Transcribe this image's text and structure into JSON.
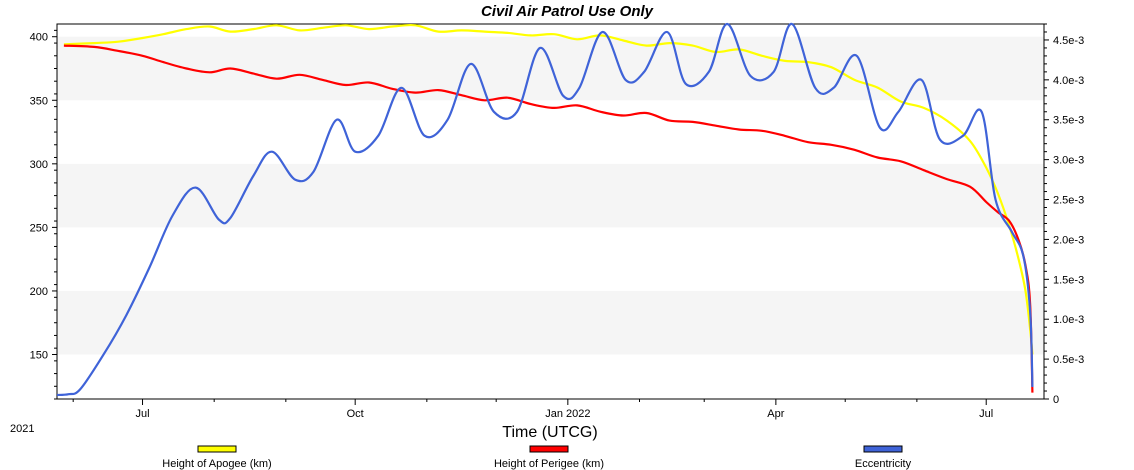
{
  "chart_data": {
    "type": "line",
    "title": "Civil Air Patrol Use Only",
    "xlabel": "Time (UTCG)",
    "year_label": "2021",
    "x_ticks": [
      "Jul",
      "Oct",
      "Jan 2022",
      "Apr",
      "Jul"
    ],
    "x_tick_dates": [
      "2021-07-01",
      "2021-10-01",
      "2022-01-01",
      "2022-04-01",
      "2022-07-01"
    ],
    "xlim": [
      "2021-05-25",
      "2022-07-26"
    ],
    "y_left": {
      "ticks": [
        "150",
        "200",
        "250",
        "300",
        "350",
        "400"
      ],
      "ylim": [
        115,
        410
      ]
    },
    "y_right": {
      "ticks": [
        "0",
        "0.5e-3",
        "1.0e-3",
        "1.5e-3",
        "2.0e-3",
        "2.5e-3",
        "3.0e-3",
        "3.5e-3",
        "4.0e-3",
        "4.5e-3"
      ],
      "ylim": [
        0,
        0.0047
      ]
    },
    "grid": "alternating horizontal bands",
    "legend_position": "bottom",
    "series": [
      {
        "name": "Height of Apogee (km)",
        "axis": "left",
        "color": "#ffff00",
        "x": [
          "2021-05-28",
          "2021-06-10",
          "2021-06-20",
          "2021-07-01",
          "2021-07-10",
          "2021-07-20",
          "2021-07-30",
          "2021-08-08",
          "2021-08-18",
          "2021-08-28",
          "2021-09-07",
          "2021-09-17",
          "2021-09-27",
          "2021-10-07",
          "2021-10-17",
          "2021-10-27",
          "2021-11-06",
          "2021-11-16",
          "2021-11-26",
          "2021-12-06",
          "2021-12-16",
          "2021-12-26",
          "2022-01-05",
          "2022-01-15",
          "2022-01-25",
          "2022-02-04",
          "2022-02-14",
          "2022-02-24",
          "2022-03-06",
          "2022-03-16",
          "2022-03-26",
          "2022-04-05",
          "2022-04-15",
          "2022-04-25",
          "2022-05-05",
          "2022-05-15",
          "2022-05-25",
          "2022-06-04",
          "2022-06-14",
          "2022-06-24",
          "2022-07-01",
          "2022-07-06",
          "2022-07-11",
          "2022-07-15",
          "2022-07-18",
          "2022-07-20",
          "2022-07-21"
        ],
        "values": [
          394,
          395,
          396,
          399,
          402,
          406,
          408,
          404,
          406,
          409,
          405,
          407,
          409,
          406,
          408,
          409,
          404,
          405,
          404,
          403,
          401,
          402,
          398,
          401,
          397,
          393,
          395,
          393,
          388,
          390,
          385,
          381,
          380,
          376,
          366,
          360,
          349,
          344,
          334,
          318,
          297,
          277,
          251,
          225,
          200,
          170,
          150
        ]
      },
      {
        "name": "Height of Perigee (km)",
        "axis": "left",
        "color": "#ff0000",
        "x": [
          "2021-05-28",
          "2021-06-10",
          "2021-06-20",
          "2021-07-01",
          "2021-07-10",
          "2021-07-20",
          "2021-07-30",
          "2021-08-08",
          "2021-08-18",
          "2021-08-28",
          "2021-09-07",
          "2021-09-17",
          "2021-09-27",
          "2021-10-07",
          "2021-10-17",
          "2021-10-27",
          "2021-11-06",
          "2021-11-16",
          "2021-11-26",
          "2021-12-06",
          "2021-12-16",
          "2021-12-26",
          "2022-01-05",
          "2022-01-15",
          "2022-01-25",
          "2022-02-04",
          "2022-02-14",
          "2022-02-24",
          "2022-03-06",
          "2022-03-16",
          "2022-03-26",
          "2022-04-05",
          "2022-04-15",
          "2022-04-25",
          "2022-05-05",
          "2022-05-15",
          "2022-05-25",
          "2022-06-04",
          "2022-06-14",
          "2022-06-24",
          "2022-07-01",
          "2022-07-06",
          "2022-07-11",
          "2022-07-15",
          "2022-07-18",
          "2022-07-20",
          "2022-07-21"
        ],
        "values": [
          393,
          392,
          389,
          385,
          380,
          375,
          372,
          375,
          371,
          367,
          370,
          366,
          362,
          364,
          359,
          356,
          358,
          354,
          350,
          352,
          347,
          344,
          346,
          341,
          338,
          340,
          334,
          333,
          330,
          327,
          326,
          322,
          317,
          315,
          311,
          305,
          302,
          295,
          288,
          282,
          270,
          262,
          255,
          240,
          220,
          190,
          120
        ]
      },
      {
        "name": "Eccentricity",
        "axis": "right",
        "color": "#3f63d8",
        "x": [
          "2021-05-25",
          "2021-05-30",
          "2021-06-04",
          "2021-06-14",
          "2021-06-24",
          "2021-07-04",
          "2021-07-14",
          "2021-07-24",
          "2021-08-03",
          "2021-08-08",
          "2021-08-18",
          "2021-08-26",
          "2021-09-05",
          "2021-09-13",
          "2021-09-23",
          "2021-10-01",
          "2021-10-11",
          "2021-10-21",
          "2021-10-31",
          "2021-11-10",
          "2021-11-20",
          "2021-11-30",
          "2021-12-10",
          "2021-12-20",
          "2021-12-30",
          "2022-01-06",
          "2022-01-16",
          "2022-01-26",
          "2022-02-03",
          "2022-02-13",
          "2022-02-21",
          "2022-03-03",
          "2022-03-11",
          "2022-03-21",
          "2022-03-31",
          "2022-04-08",
          "2022-04-18",
          "2022-04-26",
          "2022-05-06",
          "2022-05-16",
          "2022-05-24",
          "2022-06-03",
          "2022-06-11",
          "2022-06-21",
          "2022-06-29",
          "2022-07-05",
          "2022-07-12",
          "2022-07-17",
          "2022-07-20",
          "2022-07-21"
        ],
        "values": [
          5e-05,
          6e-05,
          0.00012,
          0.00055,
          0.00105,
          0.00165,
          0.0023,
          0.00265,
          0.00225,
          0.00227,
          0.0028,
          0.0031,
          0.00275,
          0.00285,
          0.0035,
          0.0031,
          0.0033,
          0.0039,
          0.0033,
          0.0035,
          0.0042,
          0.0036,
          0.0036,
          0.0044,
          0.0038,
          0.0039,
          0.0046,
          0.004,
          0.0041,
          0.0046,
          0.00395,
          0.0041,
          0.0047,
          0.00405,
          0.0041,
          0.0047,
          0.0039,
          0.0039,
          0.0043,
          0.0034,
          0.0036,
          0.004,
          0.00325,
          0.0033,
          0.0036,
          0.0025,
          0.0021,
          0.0018,
          0.0011,
          0.00015
        ]
      }
    ]
  }
}
